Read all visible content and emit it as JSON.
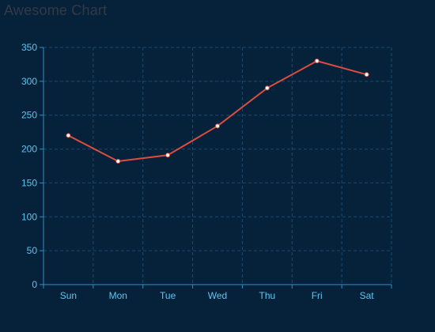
{
  "chart_data": {
    "type": "line",
    "title": "Awesome Chart",
    "categories": [
      "Sun",
      "Mon",
      "Tue",
      "Wed",
      "Thu",
      "Fri",
      "Sat"
    ],
    "series": [
      {
        "values": [
          220,
          182,
          191,
          234,
          290,
          330,
          310
        ],
        "color": "#d94e3f"
      }
    ],
    "ylim": [
      0,
      350
    ],
    "yticks": [
      0,
      50,
      100,
      150,
      200,
      250,
      300,
      350
    ],
    "grid": true,
    "xlabel": "",
    "ylabel": "",
    "colors": {
      "background": "#06213a",
      "axis": "#2f8fc6",
      "grid": "#1c4a6e",
      "label": "#5ec6ef",
      "title": "#333a46",
      "line": "#d94e3f",
      "marker_fill": "#ffffff"
    }
  }
}
